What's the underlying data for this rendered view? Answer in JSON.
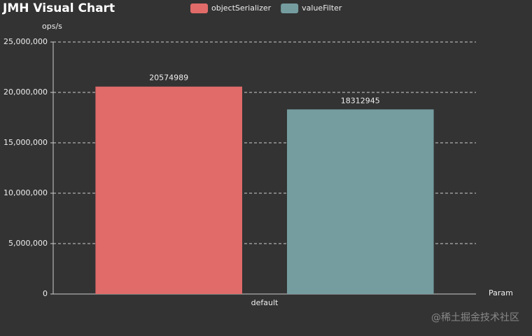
{
  "chart_data": {
    "type": "bar",
    "title": "JMH Visual Chart",
    "y_label": "ops/s",
    "x_label": "Param",
    "categories": [
      "default"
    ],
    "series": [
      {
        "name": "objectSerializer",
        "color": "#e06b69",
        "values": [
          20574989
        ]
      },
      {
        "name": "valueFilter",
        "color": "#759da0",
        "values": [
          18312945
        ]
      }
    ],
    "ylim": [
      0,
      25000000
    ],
    "yticks": [
      0,
      {
        "value": 5000000,
        "label": "5,000,000"
      },
      {
        "value": 10000000,
        "label": "10,000,000"
      },
      {
        "value": 15000000,
        "label": "15,000,000"
      },
      {
        "value": 20000000,
        "label": "20,000,000"
      },
      {
        "value": 25000000,
        "label": "25,000,000"
      }
    ],
    "grid": true,
    "legend": "top",
    "watermark": "@稀土掘金技术社区"
  }
}
